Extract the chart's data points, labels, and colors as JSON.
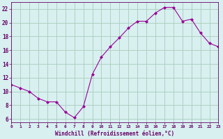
{
  "x": [
    0,
    1,
    2,
    3,
    4,
    5,
    6,
    7,
    8,
    9,
    10,
    11,
    12,
    13,
    14,
    15,
    16,
    17,
    18,
    19,
    20,
    21,
    22,
    23
  ],
  "y": [
    11.0,
    10.5,
    10.0,
    9.0,
    8.5,
    8.5,
    7.0,
    6.2,
    7.8,
    12.5,
    15.0,
    16.5,
    17.8,
    19.2,
    20.2,
    20.2,
    21.4,
    22.2,
    22.2,
    20.2,
    20.5,
    18.5,
    17.0,
    16.5
  ],
  "line_color": "#990099",
  "marker": "D",
  "marker_size": 2,
  "bg_color": "#d8f0f0",
  "grid_color": "#aaccbb",
  "xlabel": "Windchill (Refroidissement éolien,°C)",
  "xlabel_color": "#660066",
  "tick_color": "#660066",
  "ylim": [
    5.5,
    23
  ],
  "xlim": [
    0,
    23
  ],
  "yticks": [
    6,
    8,
    10,
    12,
    14,
    16,
    18,
    20,
    22
  ],
  "xticks": [
    0,
    1,
    2,
    3,
    4,
    5,
    6,
    7,
    8,
    9,
    10,
    11,
    12,
    13,
    14,
    15,
    16,
    17,
    18,
    19,
    20,
    21,
    22,
    23
  ]
}
